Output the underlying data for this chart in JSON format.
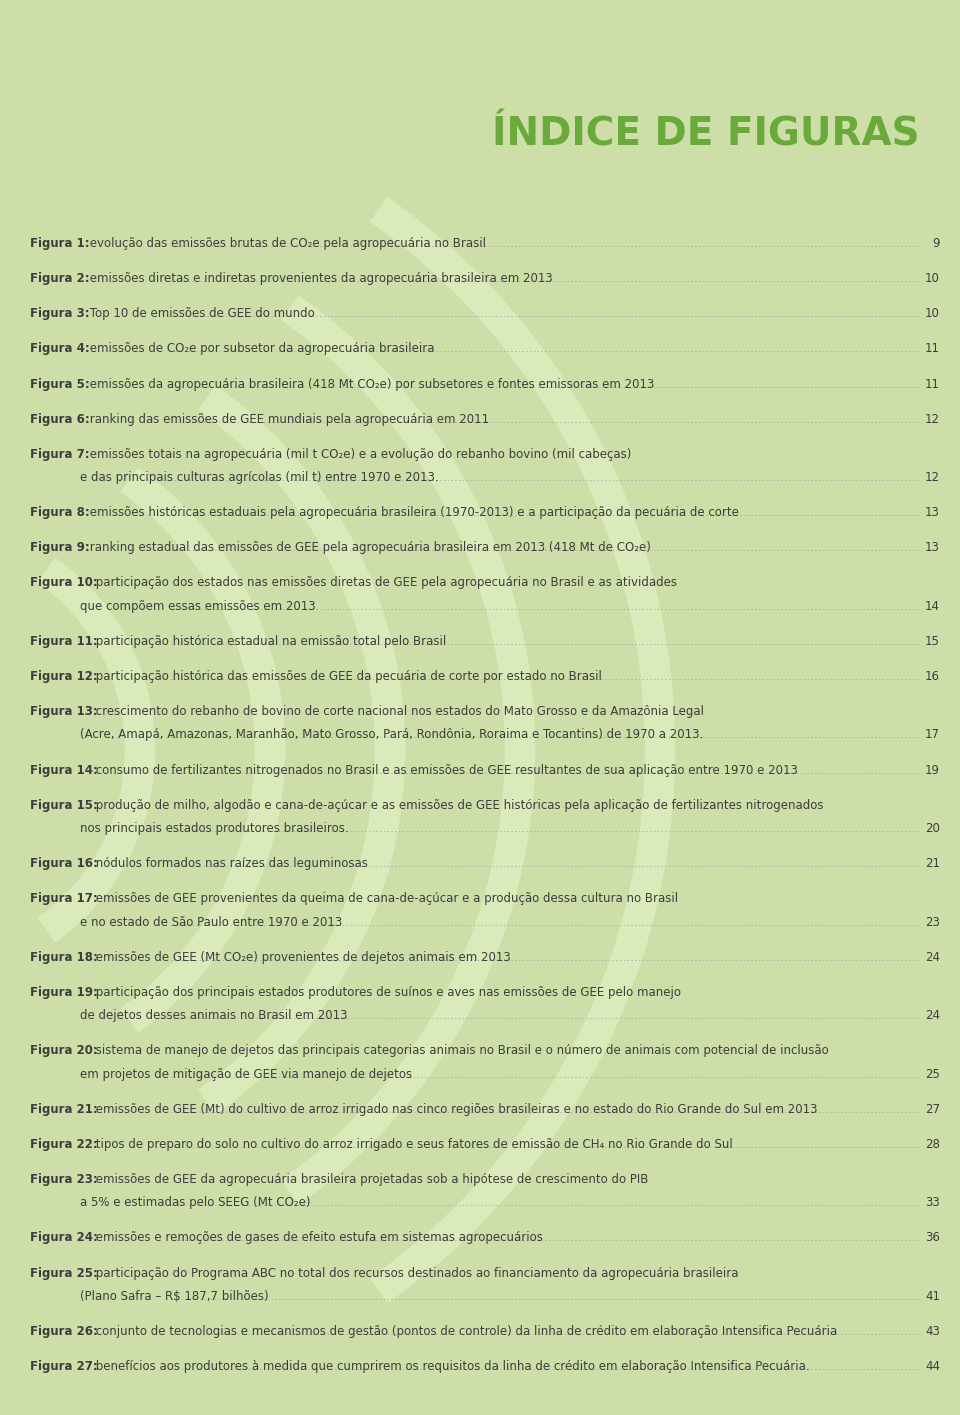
{
  "title": "ÍNDICE DE FIGURAS",
  "bg_color": "#cddea8",
  "stripe_color": "#daeabb",
  "title_color": "#6aaa3a",
  "bold_color": "#3d3d3d",
  "text_color": "#3d3d3d",
  "dot_color": "#aaaaaa",
  "page_color": "#3d3d3d",
  "entries": [
    {
      "label": "Figura 1:",
      "text": " evolução das emissões brutas de CO₂e pela agropecuária no Brasil",
      "continuation": null,
      "page": "9"
    },
    {
      "label": "Figura 2:",
      "text": " emissões diretas e indiretas provenientes da agropecuária brasileira em 2013",
      "continuation": null,
      "page": "10"
    },
    {
      "label": "Figura 3:",
      "text": " Top 10 de emissões de GEE do mundo",
      "continuation": null,
      "page": "10"
    },
    {
      "label": "Figura 4:",
      "text": " emissões de CO₂e por subsetor da agropecuária brasileira",
      "continuation": null,
      "page": "11"
    },
    {
      "label": "Figura 5:",
      "text": " emissões da agropecuária brasileira (418 Mt CO₂e) por subsetores e fontes emissoras em 2013",
      "continuation": null,
      "page": "11"
    },
    {
      "label": "Figura 6:",
      "text": " ranking das emissões de GEE mundiais pela agropecuária em 2011",
      "continuation": null,
      "page": "12"
    },
    {
      "label": "Figura 7:",
      "text": " emissões totais na agropecuária (mil t CO₂e) e a evolução do rebanho bovino (mil cabeças)",
      "continuation": "        e das principais culturas agrícolas (mil t) entre 1970 e 2013.",
      "page": "12"
    },
    {
      "label": "Figura 8:",
      "text": " emissões históricas estaduais pela agropecuária brasileira (1970-2013) e a participação da pecuária de corte",
      "continuation": null,
      "page": "13"
    },
    {
      "label": "Figura 9:",
      "text": " ranking estadual das emissões de GEE pela agropecuária brasileira em 2013 (418 Mt de CO₂e)",
      "continuation": null,
      "page": "13"
    },
    {
      "label": "Figura 10:",
      "text": " participação dos estados nas emissões diretas de GEE pela agropecuária no Brasil e as atividades",
      "continuation": "        que compõem essas emissões em 2013",
      "page": "14"
    },
    {
      "label": "Figura 11:",
      "text": " participação histórica estadual na emissão total pelo Brasil",
      "continuation": null,
      "page": "15"
    },
    {
      "label": "Figura 12:",
      "text": " participação histórica das emissões de GEE da pecuária de corte por estado no Brasil",
      "continuation": null,
      "page": "16"
    },
    {
      "label": "Figura 13:",
      "text": " crescimento do rebanho de bovino de corte nacional nos estados do Mato Grosso e da Amazônia Legal",
      "continuation": "        (Acre, Amapá, Amazonas, Maranhão, Mato Grosso, Pará, Rondônia, Roraima e Tocantins) de 1970 a 2013.",
      "page": "17"
    },
    {
      "label": "Figura 14:",
      "text": " consumo de fertilizantes nitrogenados no Brasil e as emissões de GEE resultantes de sua aplicação entre 1970 e 2013",
      "continuation": null,
      "page": "19"
    },
    {
      "label": "Figura 15:",
      "text": " produção de milho, algodão e cana-de-açúcar e as emissões de GEE históricas pela aplicação de fertilizantes nitrogenados",
      "continuation": "        nos principais estados produtores brasileiros.",
      "page": "20"
    },
    {
      "label": "Figura 16:",
      "text": " nódulos formados nas raízes das leguminosas",
      "continuation": null,
      "page": "21"
    },
    {
      "label": "Figura 17:",
      "text": " emissões de GEE provenientes da queima de cana-de-açúcar e a produção dessa cultura no Brasil",
      "continuation": "        e no estado de São Paulo entre 1970 e 2013",
      "page": "23"
    },
    {
      "label": "Figura 18:",
      "text": " emissões de GEE (Mt CO₂e) provenientes de dejetos animais em 2013",
      "continuation": null,
      "page": "24"
    },
    {
      "label": "Figura 19:",
      "text": " participação dos principais estados produtores de suínos e aves nas emissões de GEE pelo manejo",
      "continuation": "        de dejetos desses animais no Brasil em 2013",
      "page": "24"
    },
    {
      "label": "Figura 20:",
      "text": " sistema de manejo de dejetos das principais categorias animais no Brasil e o número de animais com potencial de inclusão",
      "continuation": "        em projetos de mitigação de GEE via manejo de dejetos",
      "page": "25"
    },
    {
      "label": "Figura 21:",
      "text": " emissões de GEE (Mt) do cultivo de arroz irrigado nas cinco regiões brasileiras e no estado do Rio Grande do Sul em 2013",
      "continuation": null,
      "page": "27"
    },
    {
      "label": "Figura 22:",
      "text": " tipos de preparo do solo no cultivo do arroz irrigado e seus fatores de emissão de CH₄ no Rio Grande do Sul",
      "continuation": null,
      "page": "28"
    },
    {
      "label": "Figura 23:",
      "text": " emissões de GEE da agropecuária brasileira projetadas sob a hipótese de crescimento do PIB",
      "continuation": "        a 5% e estimadas pelo SEEG (Mt CO₂e)",
      "page": "33"
    },
    {
      "label": "Figura 24:",
      "text": " emissões e remoções de gases de efeito estufa em sistemas agropecuários",
      "continuation": null,
      "page": "36"
    },
    {
      "label": "Figura 25:",
      "text": " participação do Programa ABC no total dos recursos destinados ao financiamento da agropecuária brasileira",
      "continuation": "        (Plano Safra – R$ 187,7 bilhões)",
      "page": "41"
    },
    {
      "label": "Figura 26:",
      "text": " conjunto de tecnologias e mecanismos de gestão (pontos de controle) da linha de crédito em elaboração Intensifica Pecuária",
      "continuation": null,
      "page": "43"
    },
    {
      "label": "Figura 27:",
      "text": " benefícios aos produtores à medida que cumprirem os requisitos da linha de crédito em elaboração Intensifica Pecuária.",
      "continuation": null,
      "page": "44"
    }
  ]
}
